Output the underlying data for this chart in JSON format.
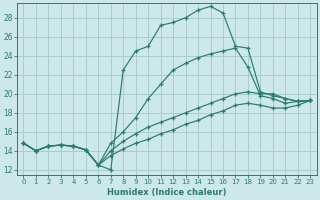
{
  "xlabel": "Humidex (Indice chaleur)",
  "ylabel": "",
  "background_color": "#cce8e8",
  "grid_color": "#aacccc",
  "line_color": "#2a7a72",
  "xlim": [
    -0.5,
    23.5
  ],
  "ylim": [
    11.5,
    29.5
  ],
  "yticks": [
    12,
    14,
    16,
    18,
    20,
    22,
    24,
    26,
    28
  ],
  "xticks": [
    0,
    1,
    2,
    3,
    4,
    5,
    6,
    7,
    8,
    9,
    10,
    11,
    12,
    13,
    14,
    15,
    16,
    17,
    18,
    19,
    20,
    21,
    22,
    23
  ],
  "series": [
    {
      "x": [
        0,
        1,
        2,
        3,
        4,
        5,
        6,
        7,
        8,
        9,
        10,
        11,
        12,
        13,
        14,
        15,
        16,
        17,
        18,
        19,
        20,
        21,
        22,
        23
      ],
      "y": [
        14.8,
        14.0,
        14.5,
        14.6,
        14.5,
        14.1,
        12.5,
        12.0,
        22.5,
        24.5,
        25.0,
        27.2,
        27.5,
        28.0,
        28.8,
        29.2,
        28.5,
        25.0,
        24.8,
        20.2,
        19.8,
        19.5,
        19.2,
        19.3
      ]
    },
    {
      "x": [
        0,
        1,
        2,
        3,
        4,
        5,
        6,
        7,
        8,
        9,
        10,
        11,
        12,
        13,
        14,
        15,
        16,
        17,
        18,
        19,
        20,
        21,
        22,
        23
      ],
      "y": [
        14.8,
        14.0,
        14.5,
        14.6,
        14.5,
        14.1,
        12.5,
        14.8,
        16.0,
        17.5,
        19.5,
        21.0,
        22.5,
        23.2,
        23.8,
        24.2,
        24.5,
        24.8,
        22.8,
        19.8,
        19.5,
        19.0,
        19.2,
        19.3
      ]
    },
    {
      "x": [
        0,
        1,
        2,
        3,
        4,
        5,
        6,
        7,
        8,
        9,
        10,
        11,
        12,
        13,
        14,
        15,
        16,
        17,
        18,
        19,
        20,
        21,
        22,
        23
      ],
      "y": [
        14.8,
        14.0,
        14.5,
        14.6,
        14.5,
        14.1,
        12.5,
        14.0,
        15.0,
        15.8,
        16.5,
        17.0,
        17.5,
        18.0,
        18.5,
        19.0,
        19.5,
        20.0,
        20.2,
        20.0,
        20.0,
        19.5,
        19.2,
        19.3
      ]
    },
    {
      "x": [
        0,
        1,
        2,
        3,
        4,
        5,
        6,
        7,
        8,
        9,
        10,
        11,
        12,
        13,
        14,
        15,
        16,
        17,
        18,
        19,
        20,
        21,
        22,
        23
      ],
      "y": [
        14.8,
        14.0,
        14.5,
        14.6,
        14.5,
        14.1,
        12.5,
        13.5,
        14.2,
        14.8,
        15.2,
        15.8,
        16.2,
        16.8,
        17.2,
        17.8,
        18.2,
        18.8,
        19.0,
        18.8,
        18.5,
        18.5,
        18.8,
        19.3
      ]
    }
  ]
}
